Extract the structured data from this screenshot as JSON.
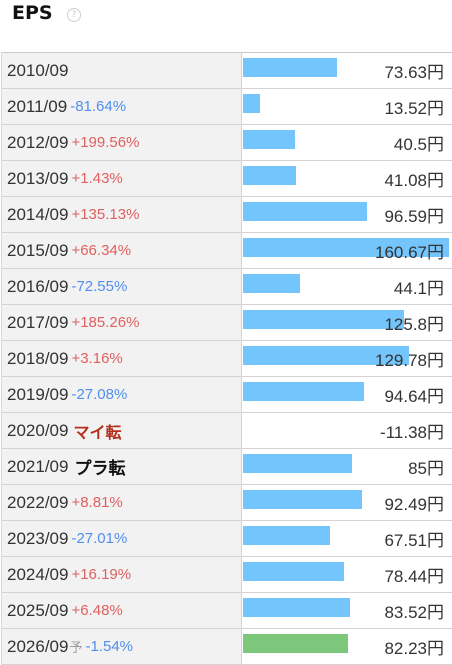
{
  "header": {
    "title": "EPS",
    "help_glyph": "?"
  },
  "rows": [
    {
      "year": "2010/09",
      "change": "",
      "change_type": "none",
      "value": "73.63円",
      "eps": 73.63,
      "forecast": false
    },
    {
      "year": "2011/09",
      "change": "-81.64%",
      "change_type": "neg",
      "value": "13.52円",
      "eps": 13.52,
      "forecast": false
    },
    {
      "year": "2012/09",
      "change": "+199.56%",
      "change_type": "pos",
      "value": "40.5円",
      "eps": 40.5,
      "forecast": false
    },
    {
      "year": "2013/09",
      "change": "+1.43%",
      "change_type": "pos",
      "value": "41.08円",
      "eps": 41.08,
      "forecast": false
    },
    {
      "year": "2014/09",
      "change": "+135.13%",
      "change_type": "pos",
      "value": "96.59円",
      "eps": 96.59,
      "forecast": false
    },
    {
      "year": "2015/09",
      "change": "+66.34%",
      "change_type": "pos",
      "value": "160.67円",
      "eps": 160.67,
      "forecast": false
    },
    {
      "year": "2016/09",
      "change": "-72.55%",
      "change_type": "neg",
      "value": "44.1円",
      "eps": 44.1,
      "forecast": false
    },
    {
      "year": "2017/09",
      "change": "+185.26%",
      "change_type": "pos",
      "value": "125.8円",
      "eps": 125.8,
      "forecast": false
    },
    {
      "year": "2018/09",
      "change": "+3.16%",
      "change_type": "pos",
      "value": "129.78円",
      "eps": 129.78,
      "forecast": false
    },
    {
      "year": "2019/09",
      "change": "-27.08%",
      "change_type": "neg",
      "value": "94.64円",
      "eps": 94.64,
      "forecast": false
    },
    {
      "year": "2020/09",
      "change": "マイ転",
      "change_type": "turn-neg",
      "value": "-11.38円",
      "eps": -11.38,
      "forecast": false
    },
    {
      "year": "2021/09",
      "change": "プラ転",
      "change_type": "turn-pos",
      "value": "85円",
      "eps": 85,
      "forecast": false
    },
    {
      "year": "2022/09",
      "change": "+8.81%",
      "change_type": "pos",
      "value": "92.49円",
      "eps": 92.49,
      "forecast": false
    },
    {
      "year": "2023/09",
      "change": "-27.01%",
      "change_type": "neg",
      "value": "67.51円",
      "eps": 67.51,
      "forecast": false
    },
    {
      "year": "2024/09",
      "change": "+16.19%",
      "change_type": "pos",
      "value": "78.44円",
      "eps": 78.44,
      "forecast": false
    },
    {
      "year": "2025/09",
      "change": "+6.48%",
      "change_type": "pos",
      "value": "83.52円",
      "eps": 83.52,
      "forecast": false
    },
    {
      "year": "2026/09",
      "forecast_mark": "予",
      "change": "-1.54%",
      "change_type": "neg",
      "value": "82.23円",
      "eps": 82.23,
      "forecast": true
    }
  ],
  "colors": {
    "bar": "#73c5fb",
    "forecast_bar": "#7dc77d",
    "positive_change": "#e06060",
    "negative_change": "#4f8ff0",
    "turn_negative": "#b3301f"
  }
}
